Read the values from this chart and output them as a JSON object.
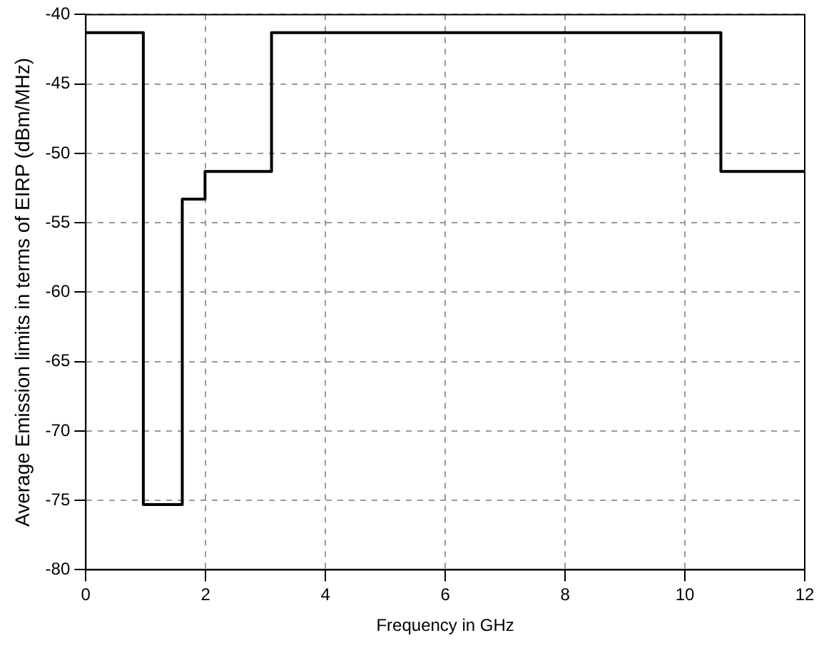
{
  "chart_data": {
    "type": "step",
    "xlabel": "Frequency in GHz",
    "ylabel": "Average Emission limits in terms of EIRP (dBm/MHz)",
    "x": [
      0,
      0.96,
      1.61,
      1.99,
      3.1,
      10.6,
      12
    ],
    "series": [
      {
        "color": "#000000",
        "values": [
          -41.3,
          -75.3,
          -53.3,
          -51.3,
          -41.3,
          -51.3,
          -51.3
        ]
      }
    ],
    "xlim": [
      0,
      12
    ],
    "xticks": [
      0,
      2,
      4,
      6,
      8,
      10,
      12
    ],
    "ylim": [
      -80,
      -40
    ],
    "yticks": [
      -80,
      -75,
      -70,
      -65,
      -60,
      -55,
      -50,
      -45,
      -40
    ],
    "grid": true,
    "marker": "none",
    "line_style": "solid"
  }
}
